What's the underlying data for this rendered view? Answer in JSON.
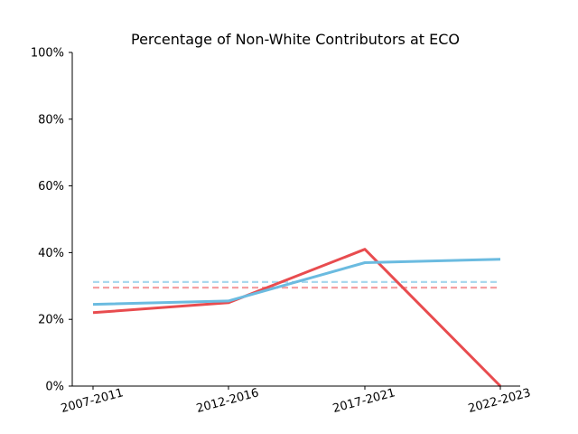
{
  "chart_data": {
    "type": "line",
    "title": "Percentage of Non-White Contributors at ECO",
    "xlabel": "",
    "ylabel": "",
    "categories": [
      "2007-2011",
      "2012-2016",
      "2017-2021",
      "2022-2023"
    ],
    "ylim": [
      0,
      100
    ],
    "yticks": [
      0,
      20,
      40,
      60,
      80,
      100
    ],
    "ytick_labels": [
      "0%",
      "20%",
      "40%",
      "60%",
      "80%",
      "100%"
    ],
    "grid": false,
    "legend": "none",
    "series": [
      {
        "color": "#e84c4f",
        "values": [
          22,
          25,
          41,
          0
        ]
      },
      {
        "color": "#6bbbe0",
        "values": [
          24.5,
          25.5,
          37,
          38
        ]
      }
    ],
    "reference_lines": [
      {
        "color": "#f4a0a2",
        "style": "dashed",
        "value": 29.5
      },
      {
        "color": "#a9d9ee",
        "style": "dashed",
        "value": 31.2
      }
    ]
  }
}
